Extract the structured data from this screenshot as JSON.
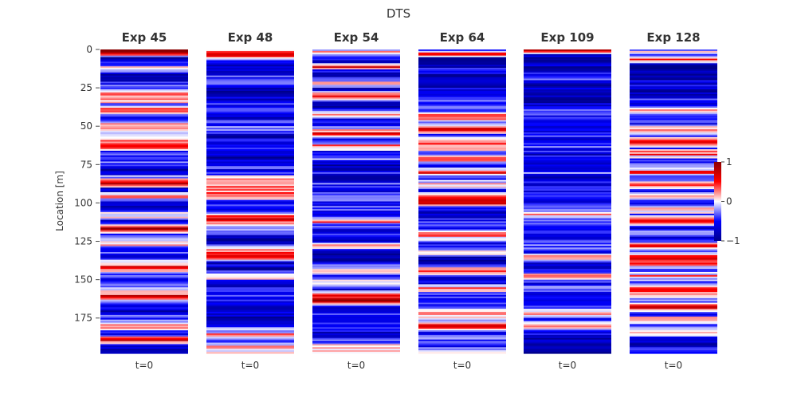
{
  "chart_data": {
    "type": "heatmap",
    "title": "DTS",
    "ylabel": "Location [m]",
    "ylim": [
      0,
      198
    ],
    "y_ticks": [
      0,
      25,
      50,
      75,
      100,
      125,
      150,
      175
    ],
    "x_tick_label": "t=0",
    "colorbar": {
      "min": -1,
      "max": 1,
      "ticks": [
        1,
        0,
        -1
      ],
      "colormap": "seismic",
      "low_color": "#00008b",
      "mid_color": "#ffffff",
      "high_color": "#8b0000"
    },
    "panels": [
      {
        "name": "Exp 45",
        "profile": [
          [
            0,
            0.95
          ],
          [
            3,
            0.9
          ],
          [
            5,
            -0.9
          ],
          [
            13,
            0.1
          ],
          [
            15,
            -0.3
          ],
          [
            17,
            -0.9
          ],
          [
            26,
            -0.2
          ],
          [
            29,
            0.3
          ],
          [
            33,
            0.4
          ],
          [
            36,
            -0.5
          ],
          [
            40,
            0.6
          ],
          [
            44,
            -0.7
          ],
          [
            50,
            0.45
          ],
          [
            54,
            -0.4
          ],
          [
            60,
            0.2
          ],
          [
            63,
            0.8
          ],
          [
            67,
            -0.6
          ],
          [
            72,
            -0.3
          ],
          [
            75,
            -0.5
          ],
          [
            80,
            -0.85
          ],
          [
            85,
            0.2
          ],
          [
            88,
            0.8
          ],
          [
            91,
            -0.9
          ],
          [
            96,
            0.3
          ],
          [
            99,
            -0.4
          ],
          [
            103,
            -0.7
          ],
          [
            108,
            0.2
          ],
          [
            112,
            -0.6
          ],
          [
            117,
            0.85
          ],
          [
            121,
            -0.6
          ],
          [
            126,
            0.3
          ],
          [
            130,
            -0.3
          ],
          [
            135,
            -0.7
          ],
          [
            142,
            0.6
          ],
          [
            146,
            -0.4
          ],
          [
            150,
            -0.6
          ],
          [
            156,
            -0.3
          ],
          [
            161,
            0.7
          ],
          [
            165,
            -0.5
          ],
          [
            170,
            -0.7
          ],
          [
            176,
            -0.3
          ],
          [
            180,
            0.4
          ],
          [
            185,
            -0.8
          ],
          [
            189,
            0.9
          ],
          [
            193,
            -0.7
          ],
          [
            198,
            -0.7
          ]
        ]
      },
      {
        "name": "Exp 48",
        "profile": [
          [
            0,
            0.1
          ],
          [
            3,
            0.8
          ],
          [
            7,
            -0.4
          ],
          [
            10,
            -0.95
          ],
          [
            15,
            -0.6
          ],
          [
            20,
            -0.3
          ],
          [
            25,
            -0.7
          ],
          [
            30,
            -0.85
          ],
          [
            36,
            -0.4
          ],
          [
            42,
            -0.7
          ],
          [
            48,
            -0.5
          ],
          [
            52,
            -0.3
          ],
          [
            56,
            -0.7
          ],
          [
            60,
            -0.6
          ],
          [
            65,
            -0.35
          ],
          [
            70,
            -0.8
          ],
          [
            75,
            -0.3
          ],
          [
            80,
            -0.6
          ],
          [
            85,
            0.2
          ],
          [
            90,
            0.3
          ],
          [
            95,
            0.25
          ],
          [
            100,
            -0.5
          ],
          [
            105,
            -0.4
          ],
          [
            110,
            0.6
          ],
          [
            114,
            0.2
          ],
          [
            118,
            -0.4
          ],
          [
            122,
            -0.7
          ],
          [
            126,
            -0.85
          ],
          [
            130,
            0.1
          ],
          [
            135,
            0.7
          ],
          [
            138,
            -0.6
          ],
          [
            143,
            -0.8
          ],
          [
            148,
            0.3
          ],
          [
            152,
            -0.7
          ],
          [
            158,
            -0.5
          ],
          [
            163,
            -0.4
          ],
          [
            168,
            -0.85
          ],
          [
            172,
            -0.6
          ],
          [
            177,
            -0.9
          ],
          [
            181,
            -0.4
          ],
          [
            186,
            0.2
          ],
          [
            190,
            -0.3
          ],
          [
            194,
            0.1
          ],
          [
            198,
            0.1
          ]
        ]
      },
      {
        "name": "Exp 54",
        "profile": [
          [
            0,
            -0.2
          ],
          [
            2,
            0.15
          ],
          [
            4,
            -0.5
          ],
          [
            8,
            -0.8
          ],
          [
            11,
            0.7
          ],
          [
            14,
            -0.6
          ],
          [
            18,
            -0.7
          ],
          [
            22,
            0.2
          ],
          [
            26,
            -0.8
          ],
          [
            30,
            0.5
          ],
          [
            34,
            -0.5
          ],
          [
            38,
            -0.9
          ],
          [
            42,
            0.3
          ],
          [
            46,
            -0.6
          ],
          [
            50,
            -0.4
          ],
          [
            55,
            0.6
          ],
          [
            59,
            -0.7
          ],
          [
            63,
            0.4
          ],
          [
            67,
            -0.6
          ],
          [
            72,
            -0.3
          ],
          [
            76,
            -0.9
          ],
          [
            80,
            -0.5
          ],
          [
            84,
            -0.7
          ],
          [
            88,
            -0.4
          ],
          [
            92,
            -0.6
          ],
          [
            96,
            -0.3
          ],
          [
            100,
            -0.5
          ],
          [
            104,
            -0.4
          ],
          [
            108,
            -0.7
          ],
          [
            112,
            0.3
          ],
          [
            116,
            -0.6
          ],
          [
            120,
            -0.4
          ],
          [
            124,
            -0.7
          ],
          [
            128,
            0.2
          ],
          [
            132,
            -0.8
          ],
          [
            136,
            -0.95
          ],
          [
            140,
            -0.5
          ],
          [
            144,
            0.1
          ],
          [
            148,
            -0.6
          ],
          [
            152,
            0.2
          ],
          [
            156,
            -0.7
          ],
          [
            160,
            0.5
          ],
          [
            164,
            0.8
          ],
          [
            167,
            -0.6
          ],
          [
            171,
            -0.4
          ],
          [
            175,
            -0.7
          ],
          [
            180,
            -0.5
          ],
          [
            185,
            -0.7
          ],
          [
            190,
            -0.3
          ],
          [
            195,
            0.1
          ],
          [
            198,
            -0.2
          ]
        ]
      },
      {
        "name": "Exp 64",
        "profile": [
          [
            0,
            -0.7
          ],
          [
            3,
            0.6
          ],
          [
            6,
            -0.95
          ],
          [
            14,
            -0.5
          ],
          [
            17,
            -0.9
          ],
          [
            25,
            -0.7
          ],
          [
            32,
            -0.4
          ],
          [
            36,
            -0.6
          ],
          [
            40,
            -0.3
          ],
          [
            44,
            0.5
          ],
          [
            48,
            -0.4
          ],
          [
            52,
            0.6
          ],
          [
            56,
            -0.5
          ],
          [
            60,
            0.2
          ],
          [
            64,
            0.4
          ],
          [
            68,
            -0.3
          ],
          [
            72,
            0.3
          ],
          [
            76,
            -0.6
          ],
          [
            80,
            0.6
          ],
          [
            84,
            -0.5
          ],
          [
            88,
            0.3
          ],
          [
            92,
            -0.6
          ],
          [
            96,
            0.4
          ],
          [
            100,
            0.85
          ],
          [
            103,
            -0.5
          ],
          [
            108,
            -0.7
          ],
          [
            112,
            -0.4
          ],
          [
            116,
            -0.6
          ],
          [
            120,
            0.5
          ],
          [
            124,
            -0.3
          ],
          [
            128,
            -0.6
          ],
          [
            132,
            0.3
          ],
          [
            136,
            -0.9
          ],
          [
            140,
            -0.7
          ],
          [
            144,
            0.5
          ],
          [
            148,
            -0.5
          ],
          [
            152,
            -0.7
          ],
          [
            156,
            0.4
          ],
          [
            160,
            -0.6
          ],
          [
            164,
            -0.3
          ],
          [
            168,
            -0.5
          ],
          [
            172,
            0.3
          ],
          [
            176,
            -0.4
          ],
          [
            180,
            0.8
          ],
          [
            184,
            -0.5
          ],
          [
            188,
            -0.3
          ],
          [
            192,
            -0.6
          ],
          [
            196,
            -0.2
          ],
          [
            198,
            -0.2
          ]
        ]
      },
      {
        "name": "Exp 109",
        "profile": [
          [
            0,
            0.9
          ],
          [
            3,
            -0.5
          ],
          [
            6,
            -0.95
          ],
          [
            15,
            -0.6
          ],
          [
            19,
            -0.4
          ],
          [
            23,
            -0.8
          ],
          [
            28,
            -0.6
          ],
          [
            32,
            -0.9
          ],
          [
            36,
            -0.7
          ],
          [
            40,
            -0.5
          ],
          [
            44,
            -0.6
          ],
          [
            48,
            -0.4
          ],
          [
            52,
            -0.7
          ],
          [
            56,
            -0.5
          ],
          [
            60,
            -0.6
          ],
          [
            64,
            -0.4
          ],
          [
            68,
            -0.7
          ],
          [
            72,
            -0.5
          ],
          [
            76,
            -0.6
          ],
          [
            80,
            -0.3
          ],
          [
            84,
            -0.7
          ],
          [
            88,
            -0.5
          ],
          [
            92,
            -0.6
          ],
          [
            96,
            -0.4
          ],
          [
            100,
            -0.7
          ],
          [
            104,
            -0.3
          ],
          [
            108,
            0.2
          ],
          [
            112,
            -0.5
          ],
          [
            116,
            -0.6
          ],
          [
            120,
            -0.4
          ],
          [
            124,
            -0.6
          ],
          [
            128,
            -0.3
          ],
          [
            132,
            -0.5
          ],
          [
            136,
            0.4
          ],
          [
            140,
            -0.7
          ],
          [
            144,
            -0.6
          ],
          [
            148,
            0.3
          ],
          [
            152,
            -0.5
          ],
          [
            156,
            -0.3
          ],
          [
            160,
            -0.5
          ],
          [
            164,
            -0.7
          ],
          [
            168,
            -0.4
          ],
          [
            172,
            0.5
          ],
          [
            176,
            -0.6
          ],
          [
            180,
            0.3
          ],
          [
            184,
            -0.5
          ],
          [
            188,
            -0.7
          ],
          [
            192,
            -0.9
          ],
          [
            196,
            -0.9
          ],
          [
            198,
            -0.9
          ]
        ]
      },
      {
        "name": "Exp 128",
        "profile": [
          [
            0,
            -0.2
          ],
          [
            2,
            0.3
          ],
          [
            4,
            -0.5
          ],
          [
            7,
            0.5
          ],
          [
            10,
            -0.9
          ],
          [
            16,
            -0.95
          ],
          [
            22,
            -0.6
          ],
          [
            27,
            -0.8
          ],
          [
            32,
            -0.5
          ],
          [
            36,
            -0.7
          ],
          [
            40,
            0.3
          ],
          [
            44,
            -0.4
          ],
          [
            48,
            -0.6
          ],
          [
            52,
            0.2
          ],
          [
            56,
            -0.5
          ],
          [
            60,
            0.7
          ],
          [
            64,
            -0.4
          ],
          [
            68,
            0.5
          ],
          [
            72,
            -0.6
          ],
          [
            76,
            -0.3
          ],
          [
            80,
            0.4
          ],
          [
            84,
            -0.5
          ],
          [
            88,
            0.3
          ],
          [
            92,
            -0.6
          ],
          [
            96,
            0.3
          ],
          [
            100,
            -0.5
          ],
          [
            104,
            0.3
          ],
          [
            108,
            -0.4
          ],
          [
            112,
            0.7
          ],
          [
            116,
            -0.6
          ],
          [
            120,
            -0.3
          ],
          [
            124,
            -0.7
          ],
          [
            128,
            0.5
          ],
          [
            132,
            -0.4
          ],
          [
            136,
            0.6
          ],
          [
            140,
            0.4
          ],
          [
            144,
            -0.5
          ],
          [
            148,
            0.3
          ],
          [
            152,
            -0.6
          ],
          [
            156,
            0.5
          ],
          [
            160,
            0.3
          ],
          [
            164,
            -0.4
          ],
          [
            168,
            0.7
          ],
          [
            172,
            -0.5
          ],
          [
            176,
            0.3
          ],
          [
            180,
            -0.6
          ],
          [
            184,
            0.4
          ],
          [
            188,
            -0.5
          ],
          [
            192,
            -0.8
          ],
          [
            196,
            -0.4
          ],
          [
            198,
            -0.4
          ]
        ]
      }
    ]
  }
}
